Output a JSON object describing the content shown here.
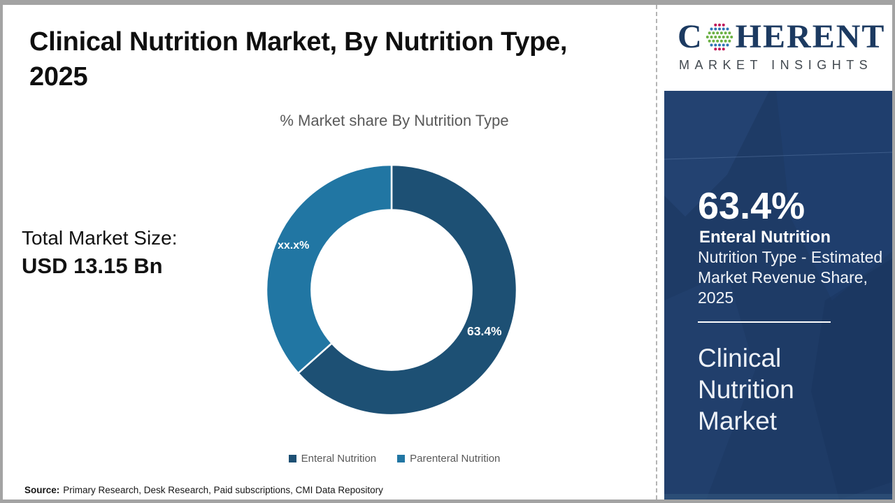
{
  "header": {
    "title": "Clinical Nutrition Market, By Nutrition Type, 2025"
  },
  "logo": {
    "prefix": "C",
    "suffix": "HERENT",
    "subtitle": "MARKET INSIGHTS",
    "text_color": "#1c3a61",
    "globe_colors": [
      "#bf1558",
      "#2e74b5",
      "#6ab043"
    ]
  },
  "left_panel": {
    "total_label": "Total Market Size:",
    "total_value": "USD 13.15 Bn"
  },
  "chart_data": {
    "type": "pie",
    "subtype": "donut",
    "title": "% Market share By Nutrition Type",
    "categories": [
      "Enteral Nutrition",
      "Parenteral Nutrition"
    ],
    "values": [
      63.4,
      36.6
    ],
    "value_labels": [
      "63.4%",
      "xx.x%"
    ],
    "colors": [
      "#1d5074",
      "#2176a3"
    ],
    "start_angle_deg": 0,
    "direction": "clockwise",
    "inner_radius_ratio": 0.64,
    "legend_position": "bottom"
  },
  "sidebar": {
    "bg_color": "#1e3b66",
    "stat_value": "63.4%",
    "stat_label": "Enteral Nutrition",
    "stat_description": "Nutrition Type - Estimated Market Revenue Share, 2025",
    "market_name": "Clinical Nutrition Market"
  },
  "footer": {
    "source_label": "Source:",
    "source_text": "Primary Research, Desk Research, Paid subscriptions, CMI Data Repository"
  }
}
